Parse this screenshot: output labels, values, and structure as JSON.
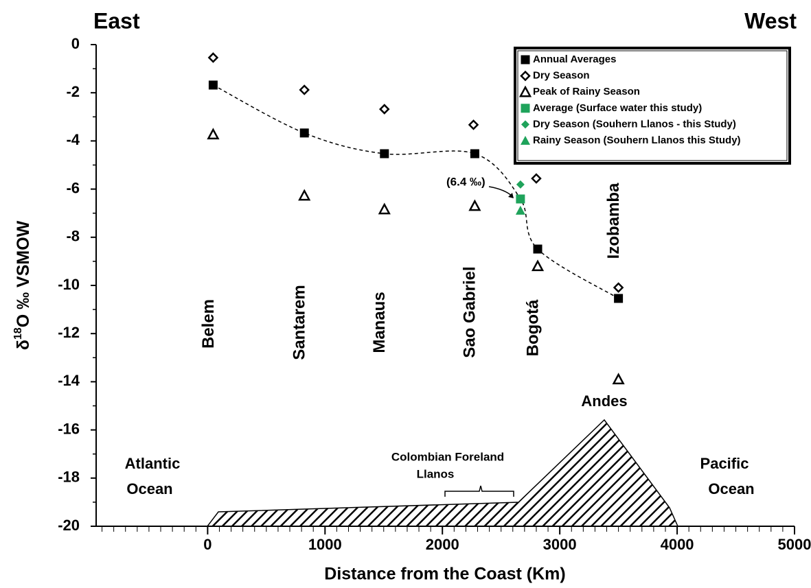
{
  "chart_data": {
    "type": "scatter",
    "left_label": "East",
    "right_label": "West",
    "x_label": "Distance from the Coast (Km)",
    "y_label_parts": [
      "δ",
      "18",
      "O ‰ VSMOW"
    ],
    "xlim": [
      -950,
      5000
    ],
    "xticks": [
      0,
      1000,
      2000,
      3000,
      4000,
      5000
    ],
    "ylim": [
      -20,
      0
    ],
    "yticks": [
      -20,
      -18,
      -16,
      -14,
      -12,
      -10,
      -8,
      -6,
      -4,
      -2,
      0
    ],
    "station_labels": [
      "Belem",
      "Santarem",
      "Manaus",
      "Sao Gabriel",
      "Bogotá",
      "Izobamba"
    ],
    "series": [
      {
        "name": "Annual Averages",
        "marker": "square",
        "color": "#000000",
        "filled": true,
        "x": [
          47,
          824,
          1506,
          2276,
          2812,
          3500
        ],
        "values": [
          -1.68,
          -3.67,
          -4.53,
          -4.53,
          -8.49,
          -10.54
        ]
      },
      {
        "name": "Dry Season",
        "marker": "diamond",
        "color": "#000000",
        "filled": false,
        "x": [
          47,
          824,
          1506,
          2265,
          2800,
          3500
        ],
        "values": [
          -0.54,
          -1.88,
          -2.68,
          -3.33,
          -5.56,
          -10.09
        ]
      },
      {
        "name": "Peak of Rainy Season",
        "marker": "triangle",
        "color": "#000000",
        "filled": false,
        "x": [
          47,
          824,
          1506,
          2276,
          2812,
          3500
        ],
        "values": [
          -3.73,
          -6.27,
          -6.84,
          -6.7,
          -9.2,
          -13.9
        ]
      },
      {
        "name": "Average (Surface water this study)",
        "marker": "square",
        "color": "#1fa35b",
        "filled": true,
        "x": [
          2665
        ],
        "values": [
          -6.41
        ]
      },
      {
        "name": "Dry Season (Souhern Llanos - this Study)",
        "marker": "diamond",
        "color": "#1fa35b",
        "filled": true,
        "x": [
          2665
        ],
        "values": [
          -5.81
        ]
      },
      {
        "name": "Rainy Season (Souhern Llanos this Study)",
        "marker": "triangle",
        "color": "#1fa35b",
        "filled": true,
        "x": [
          2665
        ],
        "values": [
          -6.89
        ]
      }
    ],
    "annotation": "(6.4 ‰)",
    "terrain_labels": {
      "andes": "Andes",
      "atlantic": [
        "Atlantic",
        "Ocean"
      ],
      "pacific": [
        "Pacific",
        "Ocean"
      ],
      "llanos": [
        "Colombian Foreland",
        "Llanos"
      ]
    }
  }
}
